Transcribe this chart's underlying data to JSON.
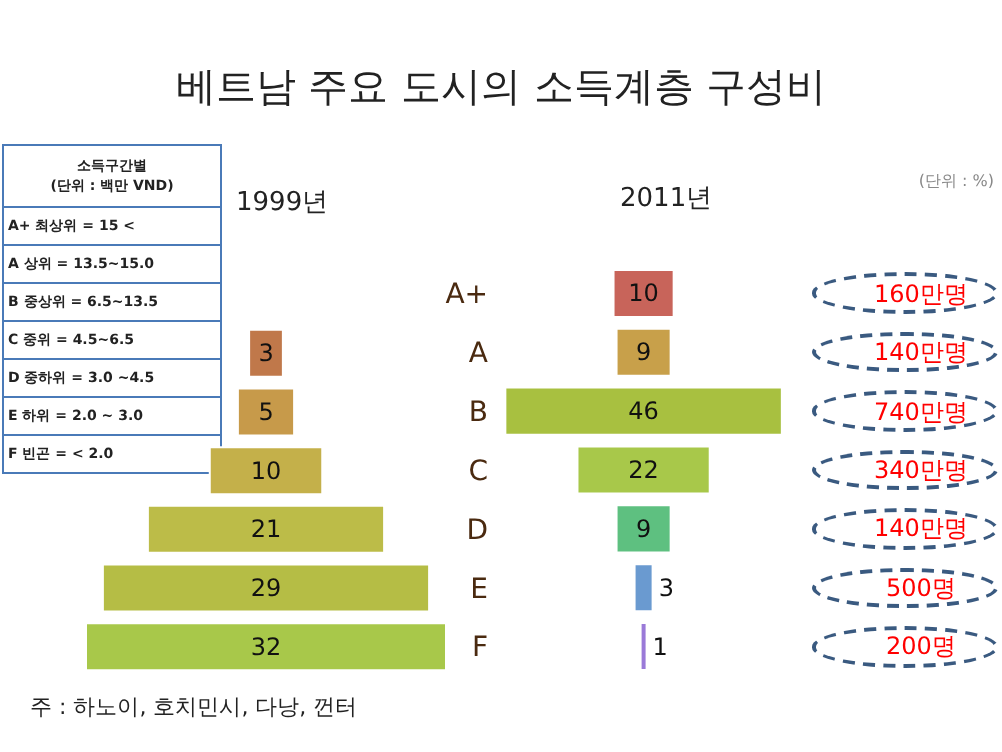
{
  "chart_data": [
    {
      "type": "other",
      "title": "소득구간별",
      "subtitle": "(단위 : 백만 VND)",
      "annotations": [
        "A+ 최상위 = 15 <",
        "A 상위 = 13.5~15.0",
        "B 중상위 = 6.5~13.5",
        "C 중위 = 4.5~6.5",
        "D 중하위 = 3.0 ~4.5",
        "E 하위 = 2.0 ~ 3.0",
        "F 빈곤 = < 2.0"
      ]
    },
    {
      "type": "other",
      "title": "베트남 주요 도시의 소득계층 구성비",
      "subtitle": "1999년",
      "categories": [
        null,
        null,
        null,
        null,
        null,
        null
      ],
      "values": [
        3,
        5,
        10,
        21,
        29,
        32
      ],
      "colors": [
        "#c0784a",
        "#c79a4a",
        "#c4b04a",
        "#bcbc48",
        "#b5bd45",
        "#a8c84a"
      ],
      "data_labels": true,
      "annotations": [
        "주 : 하노이, 호치민시, 다낭, 껀터"
      ]
    },
    {
      "type": "other",
      "title": "2011년",
      "categories": [
        "A+",
        "A",
        "B",
        "C",
        "D",
        "E",
        "F"
      ],
      "values": [
        10,
        9,
        46,
        22,
        9,
        3,
        1
      ],
      "colors": [
        "#c8645a",
        "#c8a04a",
        "#a8c040",
        "#a8c84a",
        "#5ec080",
        "#6a9ad0",
        "#9a7ad8"
      ],
      "data_labels": true,
      "annotations": [
        "(단위 : %)",
        {
          "text": "160만명",
          "y": "A+"
        },
        {
          "text": "140만명",
          "y": "A"
        },
        {
          "text": "740만명",
          "y": "B"
        },
        {
          "text": "340만명",
          "y": "C"
        },
        {
          "text": "140만명",
          "y": "D"
        },
        {
          "text": "500명",
          "y": "E"
        },
        {
          "text": "200명",
          "y": "F"
        }
      ]
    }
  ]
}
